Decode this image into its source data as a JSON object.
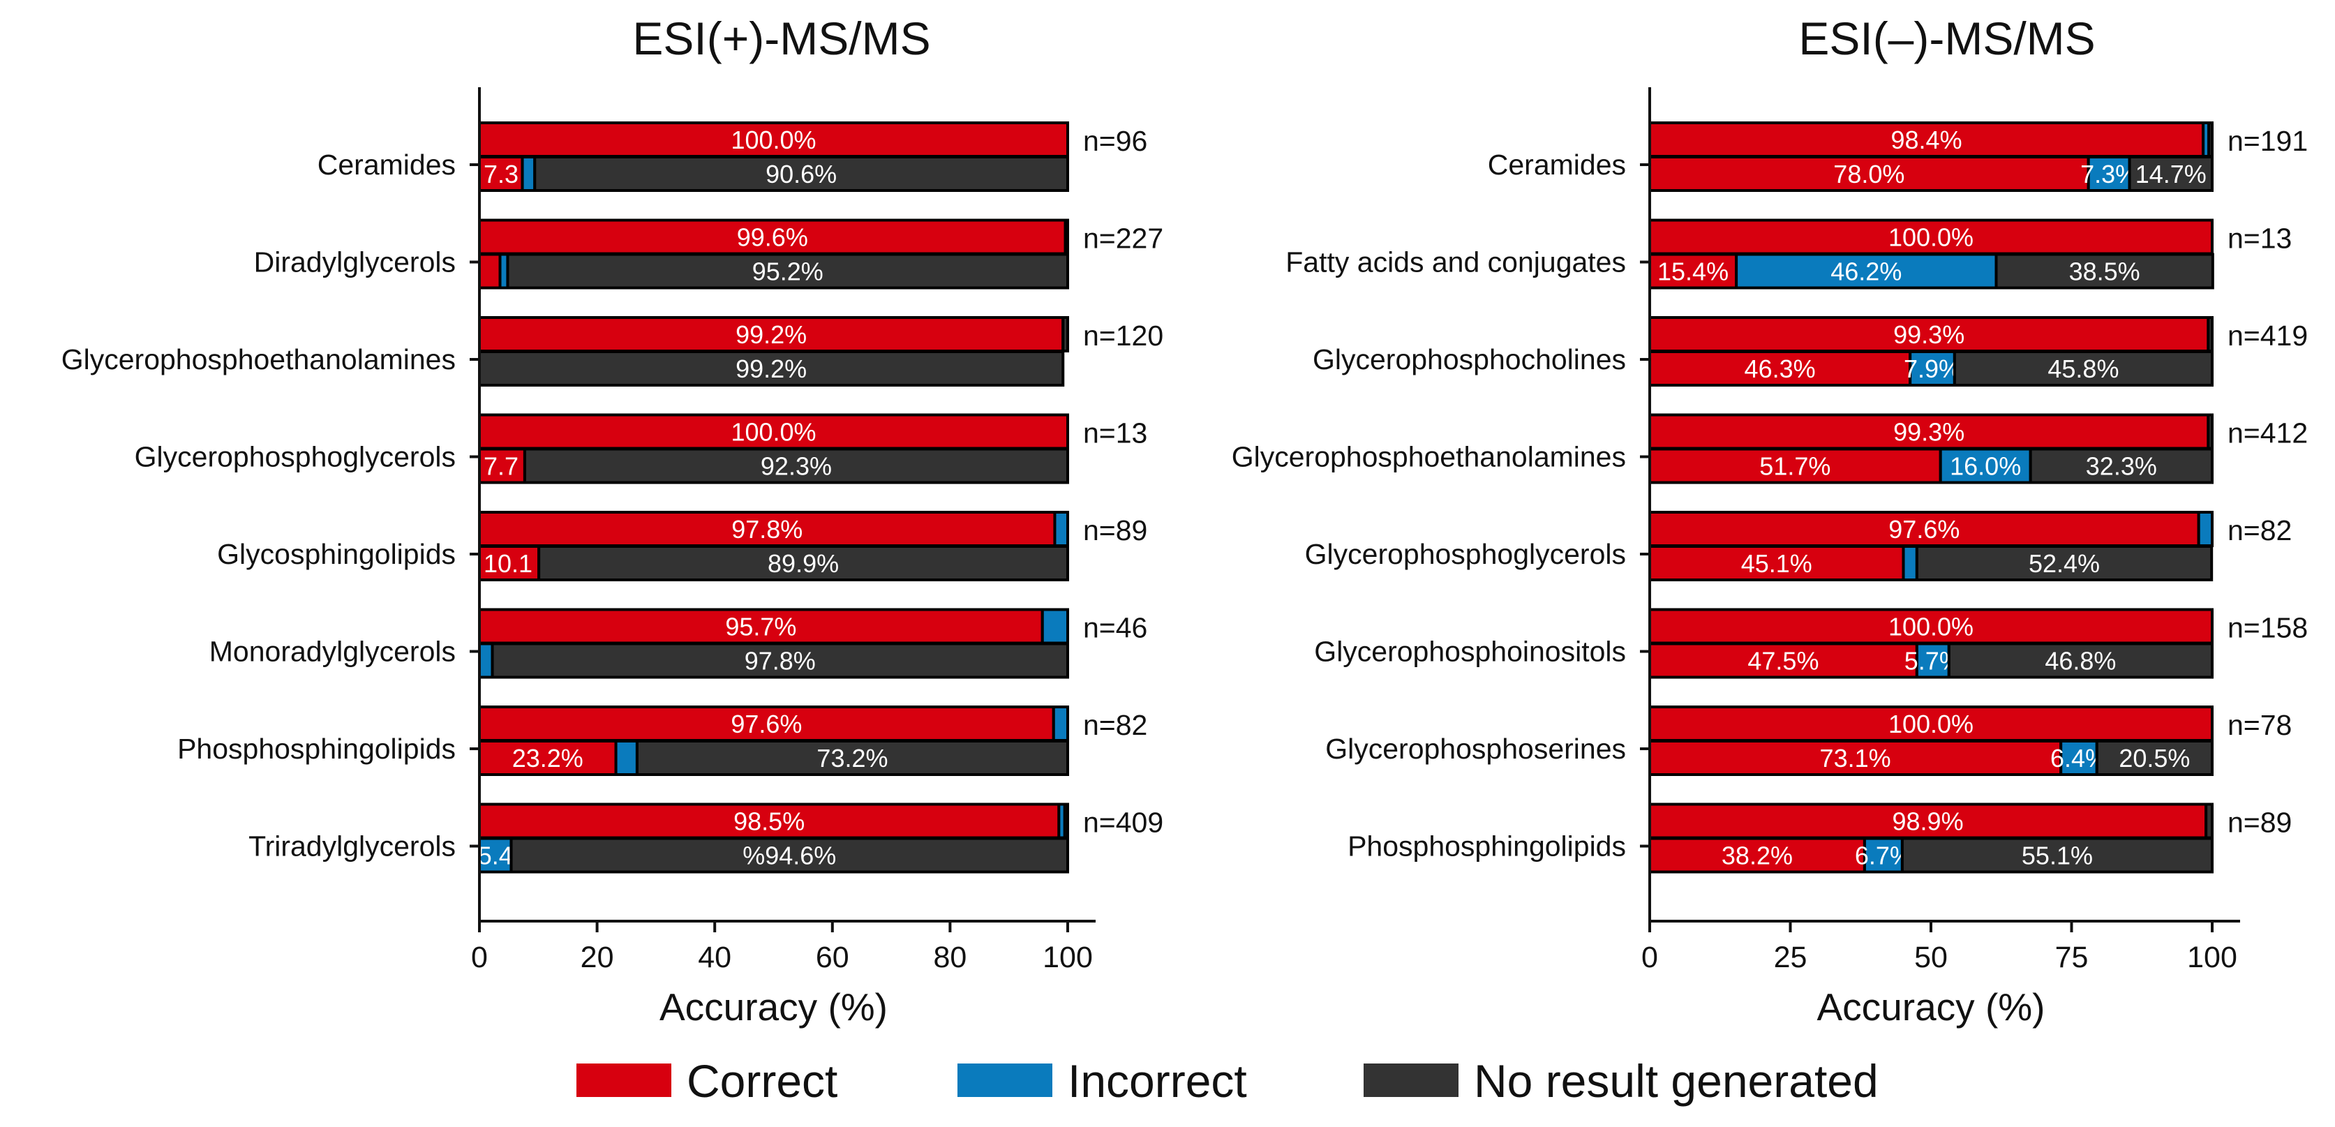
{
  "chart_data": [
    {
      "type": "bar",
      "orientation": "horizontal-stacked",
      "title": "ESI(+)-MS/MS",
      "xlabel": "Accuracy (%)",
      "xlim": [
        0,
        100
      ],
      "xticks": [
        0,
        20,
        40,
        60,
        80,
        100
      ],
      "categories": [
        {
          "name": "Ceramides",
          "n": "n=96",
          "top": {
            "correct": 100.0,
            "incorrect": 0,
            "none": 0,
            "labels": {
              "correct": "100.0%",
              "incorrect": "",
              "none": ""
            }
          },
          "bottom": {
            "correct": 7.3,
            "incorrect": 2.1,
            "none": 90.6,
            "labels": {
              "correct": "7.3",
              "incorrect": "%",
              "none": "90.6%"
            }
          }
        },
        {
          "name": "Diradylglycerols",
          "n": "n=227",
          "top": {
            "correct": 99.6,
            "incorrect": 0,
            "none": 0.4,
            "labels": {
              "correct": "99.6%",
              "incorrect": "",
              "none": ""
            }
          },
          "bottom": {
            "correct": 3.5,
            "incorrect": 1.3,
            "none": 95.2,
            "labels": {
              "correct": "",
              "incorrect": "",
              "none": "95.2%"
            }
          }
        },
        {
          "name": "Glycerophosphoethanolamines",
          "n": "n=120",
          "top": {
            "correct": 99.2,
            "incorrect": 0,
            "none": 0.8,
            "labels": {
              "correct": "99.2%",
              "incorrect": "",
              "none": ""
            }
          },
          "bottom": {
            "correct": 0,
            "incorrect": 0,
            "none": 99.2,
            "labels": {
              "correct": "",
              "incorrect": "",
              "none": "99.2%"
            }
          }
        },
        {
          "name": "Glycerophosphoglycerols",
          "n": "n=13",
          "top": {
            "correct": 100.0,
            "incorrect": 0,
            "none": 0,
            "labels": {
              "correct": "100.0%",
              "incorrect": "",
              "none": ""
            }
          },
          "bottom": {
            "correct": 7.7,
            "incorrect": 0,
            "none": 92.3,
            "labels": {
              "correct": "7.7",
              "incorrect": "%",
              "none": "92.3%"
            }
          }
        },
        {
          "name": "Glycosphingolipids",
          "n": "n=89",
          "top": {
            "correct": 97.8,
            "incorrect": 2.2,
            "none": 0,
            "labels": {
              "correct": "97.8%",
              "incorrect": "",
              "none": ""
            }
          },
          "bottom": {
            "correct": 10.1,
            "incorrect": 0,
            "none": 89.9,
            "labels": {
              "correct": "10.1",
              "incorrect": "%",
              "none": "89.9%"
            }
          }
        },
        {
          "name": "Monoradylglycerols",
          "n": "n=46",
          "top": {
            "correct": 95.7,
            "incorrect": 4.3,
            "none": 0,
            "labels": {
              "correct": "95.7%",
              "incorrect": "",
              "none": ""
            }
          },
          "bottom": {
            "correct": 0,
            "incorrect": 2.2,
            "none": 97.8,
            "labels": {
              "correct": "",
              "incorrect": "",
              "none": "97.8%"
            }
          }
        },
        {
          "name": "Phosphosphingolipids",
          "n": "n=82",
          "top": {
            "correct": 97.6,
            "incorrect": 2.4,
            "none": 0,
            "labels": {
              "correct": "97.6%",
              "incorrect": "",
              "none": ""
            }
          },
          "bottom": {
            "correct": 23.2,
            "incorrect": 3.6,
            "none": 73.2,
            "labels": {
              "correct": "23.2%",
              "incorrect": "",
              "none": "73.2%"
            }
          }
        },
        {
          "name": "Triradylglycerols",
          "n": "n=409",
          "top": {
            "correct": 98.5,
            "incorrect": 1.0,
            "none": 0.5,
            "labels": {
              "correct": "98.5%",
              "incorrect": "",
              "none": ""
            }
          },
          "bottom": {
            "correct": 0,
            "incorrect": 5.4,
            "none": 94.6,
            "labels": {
              "correct": "",
              "incorrect": "5.4",
              "none": "%94.6%"
            }
          }
        }
      ]
    },
    {
      "type": "bar",
      "orientation": "horizontal-stacked",
      "title": "ESI(–)-MS/MS",
      "xlabel": "Accuracy (%)",
      "xlim": [
        0,
        100
      ],
      "xticks": [
        0,
        25,
        50,
        75,
        100
      ],
      "categories": [
        {
          "name": "Ceramides",
          "n": "n=191",
          "top": {
            "correct": 98.4,
            "incorrect": 1.0,
            "none": 0.6,
            "labels": {
              "correct": "98.4%",
              "incorrect": "",
              "none": ""
            }
          },
          "bottom": {
            "correct": 78.0,
            "incorrect": 7.3,
            "none": 14.7,
            "labels": {
              "correct": "78.0%",
              "incorrect": "7.3%",
              "none": "14.7%"
            }
          }
        },
        {
          "name": "Fatty acids and conjugates",
          "n": "n=13",
          "top": {
            "correct": 100.0,
            "incorrect": 0,
            "none": 0,
            "labels": {
              "correct": "100.0%",
              "incorrect": "",
              "none": ""
            }
          },
          "bottom": {
            "correct": 15.4,
            "incorrect": 46.2,
            "none": 38.5,
            "labels": {
              "correct": "15.4%",
              "incorrect": "46.2%",
              "none": "38.5%"
            }
          }
        },
        {
          "name": "Glycerophosphocholines",
          "n": "n=419",
          "top": {
            "correct": 99.3,
            "incorrect": 0,
            "none": 0.7,
            "labels": {
              "correct": "99.3%",
              "incorrect": "",
              "none": ""
            }
          },
          "bottom": {
            "correct": 46.3,
            "incorrect": 7.9,
            "none": 45.8,
            "labels": {
              "correct": "46.3%",
              "incorrect": "7.9%",
              "none": "45.8%"
            }
          }
        },
        {
          "name": "Glycerophosphoethanolamines",
          "n": "n=412",
          "top": {
            "correct": 99.3,
            "incorrect": 0,
            "none": 0.7,
            "labels": {
              "correct": "99.3%",
              "incorrect": "",
              "none": ""
            }
          },
          "bottom": {
            "correct": 51.7,
            "incorrect": 16.0,
            "none": 32.3,
            "labels": {
              "correct": "51.7%",
              "incorrect": "16.0%",
              "none": "32.3%"
            }
          }
        },
        {
          "name": "Glycerophosphoglycerols",
          "n": "n=82",
          "top": {
            "correct": 97.6,
            "incorrect": 2.4,
            "none": 0,
            "labels": {
              "correct": "97.6%",
              "incorrect": "",
              "none": ""
            }
          },
          "bottom": {
            "correct": 45.1,
            "incorrect": 2.4,
            "none": 52.4,
            "labels": {
              "correct": "45.1%",
              "incorrect": "",
              "none": "52.4%"
            }
          }
        },
        {
          "name": "Glycerophosphoinositols",
          "n": "n=158",
          "top": {
            "correct": 100.0,
            "incorrect": 0,
            "none": 0,
            "labels": {
              "correct": "100.0%",
              "incorrect": "",
              "none": ""
            }
          },
          "bottom": {
            "correct": 47.5,
            "incorrect": 5.7,
            "none": 46.8,
            "labels": {
              "correct": "47.5%",
              "incorrect": "5.7%",
              "none": "46.8%"
            }
          }
        },
        {
          "name": "Glycerophosphoserines",
          "n": "n=78",
          "top": {
            "correct": 100.0,
            "incorrect": 0,
            "none": 0,
            "labels": {
              "correct": "100.0%",
              "incorrect": "",
              "none": ""
            }
          },
          "bottom": {
            "correct": 73.1,
            "incorrect": 6.4,
            "none": 20.5,
            "labels": {
              "correct": "73.1%",
              "incorrect": "6.4%",
              "none": "20.5%"
            }
          }
        },
        {
          "name": "Phosphosphingolipids",
          "n": "n=89",
          "top": {
            "correct": 98.9,
            "incorrect": 0,
            "none": 1.1,
            "labels": {
              "correct": "98.9%",
              "incorrect": "",
              "none": ""
            }
          },
          "bottom": {
            "correct": 38.2,
            "incorrect": 6.7,
            "none": 55.1,
            "labels": {
              "correct": "38.2%",
              "incorrect": "6.7%",
              "none": "55.1%"
            }
          }
        }
      ]
    }
  ],
  "legend": {
    "items": [
      {
        "key": "correct",
        "label": "Correct",
        "color": "#d7000f"
      },
      {
        "key": "incorrect",
        "label": "Incorrect",
        "color": "#0a7bbd"
      },
      {
        "key": "none",
        "label": "No result generated",
        "color": "#333333"
      }
    ]
  }
}
